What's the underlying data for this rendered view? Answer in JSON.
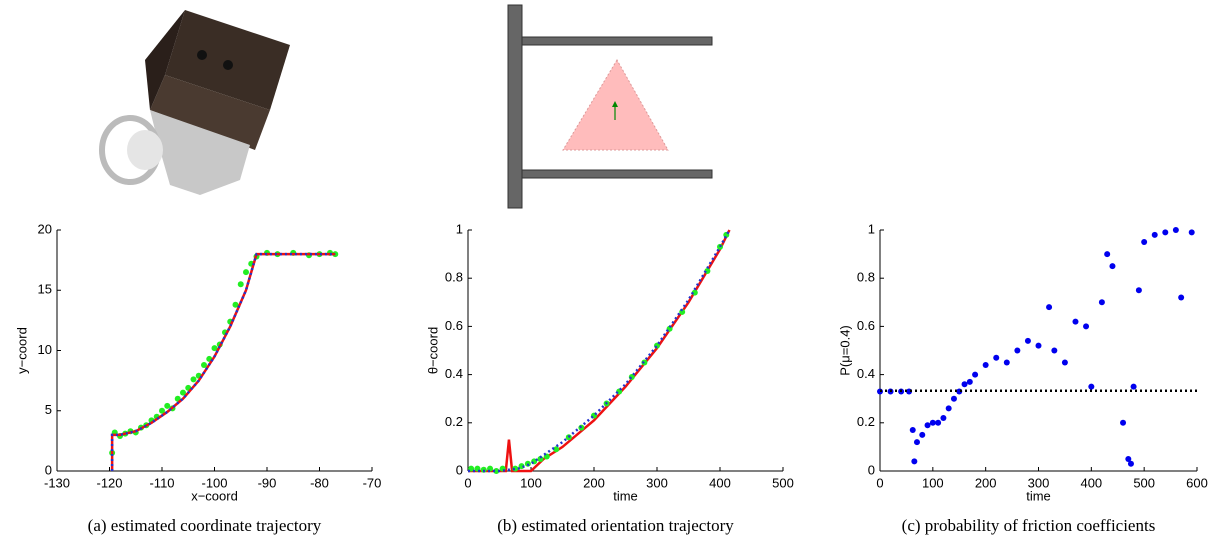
{
  "chart_data": [
    {
      "type": "line",
      "xlabel": "x−coord",
      "ylabel": "y−coord",
      "caption": "(a) estimated coordinate trajectory",
      "xlim": [
        -130,
        -70
      ],
      "xticks": [
        -130,
        -120,
        -110,
        -100,
        -90,
        -80,
        -70
      ],
      "ylim": [
        0,
        20
      ],
      "yticks": [
        0,
        5,
        10,
        15,
        20
      ],
      "series": [
        {
          "color": "#22ee22",
          "style": "scatter",
          "x": [
            -119.5,
            -119,
            -118,
            -117,
            -116,
            -115,
            -114,
            -113,
            -112,
            -111,
            -110,
            -109,
            -108,
            -107,
            -106,
            -105,
            -104,
            -103,
            -102,
            -101,
            -100,
            -99,
            -98,
            -97,
            -96,
            -95,
            -94,
            -93,
            -92,
            -90,
            -88,
            -85,
            -82,
            -80,
            -78,
            -77
          ],
          "values": [
            1.5,
            3.2,
            2.9,
            3.1,
            3.3,
            3.2,
            3.6,
            3.8,
            4.2,
            4.5,
            5.0,
            5.4,
            5.2,
            6.0,
            6.5,
            6.9,
            7.6,
            7.9,
            8.8,
            9.3,
            10.2,
            10.5,
            11.5,
            12.4,
            13.8,
            15.5,
            16.5,
            17.2,
            17.8,
            18.1,
            18.0,
            18.1,
            17.9,
            18.0,
            18.1,
            18.0
          ]
        },
        {
          "color": "#ee1111",
          "style": "line",
          "x": [
            -119.5,
            -119.5,
            -118,
            -115,
            -112,
            -109,
            -106,
            -103,
            -100,
            -97,
            -94,
            -92,
            -85,
            -77
          ],
          "values": [
            0,
            3,
            3,
            3.3,
            4,
            4.9,
            6,
            7.5,
            9.5,
            12,
            15,
            18,
            18,
            18
          ]
        },
        {
          "color": "#2233cc",
          "style": "dotted",
          "x": [
            -119.5,
            -119.5,
            -118,
            -115,
            -112,
            -109,
            -106,
            -103,
            -100,
            -97,
            -94,
            -92,
            -85,
            -77
          ],
          "values": [
            0,
            3,
            3,
            3.3,
            4,
            4.9,
            6,
            7.5,
            9.5,
            12,
            15,
            18,
            18,
            18
          ]
        }
      ]
    },
    {
      "type": "line",
      "xlabel": "time",
      "ylabel": "θ−coord",
      "caption": "(b) estimated orientation trajectory",
      "xlim": [
        0,
        500
      ],
      "xticks": [
        0,
        100,
        200,
        300,
        400,
        500
      ],
      "ylim": [
        0,
        1
      ],
      "yticks": [
        0,
        0.2,
        0.4,
        0.6,
        0.8,
        1
      ],
      "series": [
        {
          "color": "#ee1111",
          "style": "line",
          "x": [
            0,
            20,
            40,
            60,
            65,
            70,
            100,
            120,
            150,
            200,
            250,
            300,
            350,
            400,
            415
          ],
          "values": [
            0,
            0,
            0,
            0,
            0.13,
            0,
            0,
            0.05,
            0.1,
            0.21,
            0.35,
            0.51,
            0.7,
            0.92,
            1
          ]
        },
        {
          "color": "#22ee22",
          "style": "scatter",
          "x": [
            5,
            15,
            25,
            35,
            45,
            55,
            75,
            85,
            95,
            105,
            115,
            125,
            140,
            160,
            180,
            200,
            220,
            240,
            260,
            280,
            300,
            320,
            340,
            360,
            380,
            400,
            410
          ],
          "values": [
            0.01,
            0.01,
            0.005,
            0.01,
            0,
            0.01,
            0.01,
            0.02,
            0.03,
            0.04,
            0.05,
            0.06,
            0.09,
            0.14,
            0.18,
            0.23,
            0.28,
            0.33,
            0.39,
            0.45,
            0.52,
            0.59,
            0.66,
            0.74,
            0.83,
            0.93,
            0.98
          ]
        },
        {
          "color": "#2233cc",
          "style": "dotted",
          "x": [
            0,
            50,
            80,
            100,
            150,
            200,
            250,
            300,
            350,
            400,
            415
          ],
          "values": [
            0,
            0,
            0.01,
            0.03,
            0.12,
            0.23,
            0.36,
            0.52,
            0.71,
            0.93,
            1
          ]
        }
      ]
    },
    {
      "type": "scatter",
      "xlabel": "time",
      "ylabel": "P(μ=0.4)",
      "caption": "(c) probability of friction coefficients",
      "xlim": [
        0,
        600
      ],
      "xticks": [
        0,
        100,
        200,
        300,
        400,
        500,
        600
      ],
      "ylim": [
        0,
        1
      ],
      "yticks": [
        0,
        0.2,
        0.4,
        0.6,
        0.8,
        1
      ],
      "series": [
        {
          "color": "#0000ee",
          "style": "scatter",
          "x": [
            0,
            20,
            40,
            55,
            62,
            65,
            70,
            80,
            90,
            100,
            110,
            120,
            130,
            140,
            150,
            160,
            170,
            180,
            200,
            220,
            240,
            260,
            280,
            300,
            320,
            330,
            350,
            370,
            390,
            400,
            420,
            430,
            440,
            460,
            470,
            475,
            480,
            490,
            500,
            520,
            540,
            560,
            570,
            590
          ],
          "values": [
            0.33,
            0.33,
            0.33,
            0.33,
            0.17,
            0.04,
            0.12,
            0.15,
            0.19,
            0.2,
            0.2,
            0.22,
            0.26,
            0.3,
            0.33,
            0.36,
            0.37,
            0.4,
            0.44,
            0.47,
            0.45,
            0.5,
            0.54,
            0.52,
            0.68,
            0.5,
            0.45,
            0.62,
            0.6,
            0.35,
            0.7,
            0.9,
            0.85,
            0.2,
            0.05,
            0.03,
            0.35,
            0.75,
            0.95,
            0.98,
            0.99,
            1.0,
            0.72,
            0.99
          ]
        },
        {
          "color": "#000000",
          "style": "dotted",
          "x": [
            0,
            600
          ],
          "values": [
            0.333,
            0.333
          ]
        }
      ]
    }
  ]
}
